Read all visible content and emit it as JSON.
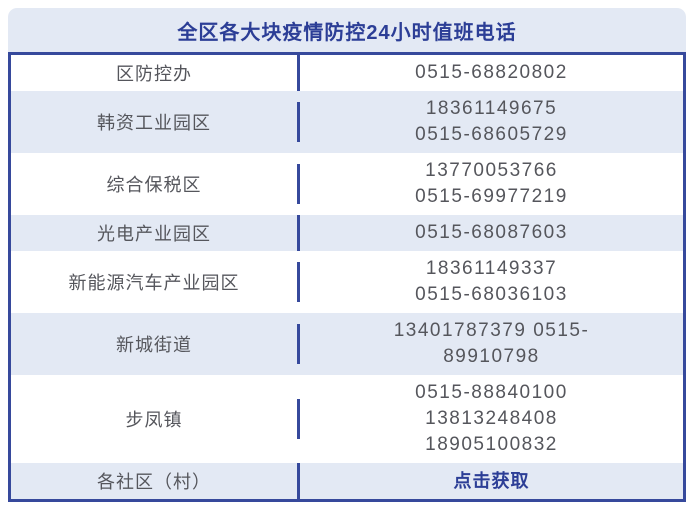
{
  "colors": {
    "navy_border": "#36499c",
    "navy_text": "#2c3e96",
    "stripe_bg": "#e3e9f4",
    "body_text": "#55565c",
    "page_bg": "#ffffff"
  },
  "header": {
    "title": "全区各大块疫情防控24小时值班电话"
  },
  "table": {
    "rows": [
      {
        "label": "区防控办",
        "phones": [
          "0515-68820802"
        ]
      },
      {
        "label": "韩资工业园区",
        "phones": [
          "18361149675",
          "0515-68605729"
        ]
      },
      {
        "label": "综合保税区",
        "phones": [
          "13770053766",
          "0515-69977219"
        ]
      },
      {
        "label": "光电产业园区",
        "phones": [
          "0515-68087603"
        ]
      },
      {
        "label": "新能源汽车产业园区",
        "phones": [
          "18361149337",
          "0515-68036103"
        ]
      },
      {
        "label": "新城街道",
        "phones": [
          "13401787379 0515-",
          "89910798"
        ]
      },
      {
        "label": "步凤镇",
        "phones": [
          "0515-88840100",
          "13813248408",
          "18905100832"
        ]
      },
      {
        "label": "各社区（村）",
        "phones": [],
        "action": "点击获取"
      }
    ]
  }
}
